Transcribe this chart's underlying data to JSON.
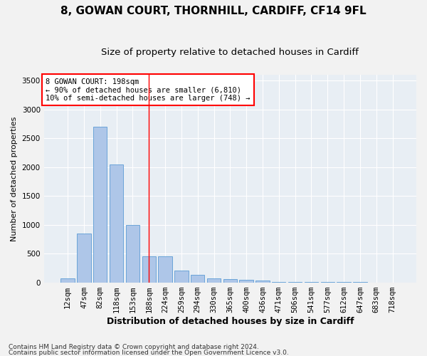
{
  "title1": "8, GOWAN COURT, THORNHILL, CARDIFF, CF14 9FL",
  "title2": "Size of property relative to detached houses in Cardiff",
  "xlabel": "Distribution of detached houses by size in Cardiff",
  "ylabel": "Number of detached properties",
  "categories": [
    "12sqm",
    "47sqm",
    "82sqm",
    "118sqm",
    "153sqm",
    "188sqm",
    "224sqm",
    "259sqm",
    "294sqm",
    "330sqm",
    "365sqm",
    "400sqm",
    "436sqm",
    "471sqm",
    "506sqm",
    "541sqm",
    "577sqm",
    "612sqm",
    "647sqm",
    "683sqm",
    "718sqm"
  ],
  "values": [
    75,
    850,
    2700,
    2050,
    1000,
    450,
    450,
    200,
    130,
    75,
    60,
    50,
    30,
    10,
    5,
    5,
    3,
    2,
    2,
    1,
    1
  ],
  "bar_color": "#aec6e8",
  "bar_edge_color": "#5b9bd5",
  "background_color": "#e8eef4",
  "grid_color": "#ffffff",
  "red_line_index": 5,
  "annotation_line1": "8 GOWAN COURT: 198sqm",
  "annotation_line2": "← 90% of detached houses are smaller (6,810)",
  "annotation_line3": "10% of semi-detached houses are larger (748) →",
  "footer1": "Contains HM Land Registry data © Crown copyright and database right 2024.",
  "footer2": "Contains public sector information licensed under the Open Government Licence v3.0.",
  "ylim": [
    0,
    3600
  ],
  "yticks": [
    0,
    500,
    1000,
    1500,
    2000,
    2500,
    3000,
    3500
  ],
  "title1_fontsize": 11,
  "title2_fontsize": 9.5,
  "ylabel_fontsize": 8,
  "xlabel_fontsize": 9,
  "tick_fontsize": 7.5,
  "annotation_fontsize": 7.5,
  "footer_fontsize": 6.5
}
